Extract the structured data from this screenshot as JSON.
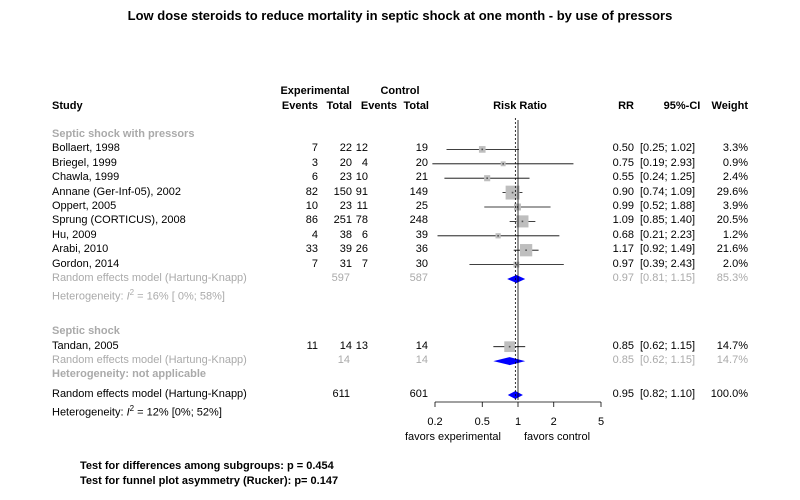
{
  "chart_data": {
    "type": "forest",
    "title": "Low dose steroids to reduce mortality in septic shock at one month - by use of pressors",
    "headers": {
      "experimental": "Experimental",
      "control": "Control",
      "study": "Study",
      "events_e": "Events",
      "total_e": "Total",
      "events_c": "Events",
      "total_c": "Total",
      "plot": "Risk Ratio",
      "rr": "RR",
      "ci": "95%-CI",
      "weight": "Weight"
    },
    "x_axis": {
      "scale": "log",
      "ticks": [
        0.2,
        0.5,
        1,
        2,
        5
      ],
      "tick_labels": [
        "0.2",
        "0.5",
        "1",
        "2",
        "5"
      ],
      "left_label": "favors experimental",
      "right_label": "favors control",
      "reference_line": 1,
      "overall_line": 0.95
    },
    "colors": {
      "diamond": "#0000ff",
      "square": "#bebebe",
      "subgroup_text": "#aaaaaa"
    },
    "subgroups": [
      {
        "name": "Septic shock with pressors",
        "studies": [
          {
            "study": "Bollaert, 1998",
            "ee": "7",
            "te": "22",
            "ec": "12",
            "tc": "19",
            "rr": 0.5,
            "lo": 0.25,
            "hi": 1.02,
            "rr_text": "0.50",
            "ci_text": "[0.25; 1.02]",
            "weight_text": "3.3%",
            "weight": 3.3
          },
          {
            "study": "Briegel, 1999",
            "ee": "3",
            "te": "20",
            "ec": "4",
            "tc": "20",
            "rr": 0.75,
            "lo": 0.19,
            "hi": 2.93,
            "rr_text": "0.75",
            "ci_text": "[0.19; 2.93]",
            "weight_text": "0.9%",
            "weight": 0.9
          },
          {
            "study": "Chawla, 1999",
            "ee": "6",
            "te": "23",
            "ec": "10",
            "tc": "21",
            "rr": 0.55,
            "lo": 0.24,
            "hi": 1.25,
            "rr_text": "0.55",
            "ci_text": "[0.24; 1.25]",
            "weight_text": "2.4%",
            "weight": 2.4
          },
          {
            "study": "Annane (Ger-Inf-05), 2002",
            "ee": "82",
            "te": "150",
            "ec": "91",
            "tc": "149",
            "rr": 0.9,
            "lo": 0.74,
            "hi": 1.09,
            "rr_text": "0.90",
            "ci_text": "[0.74; 1.09]",
            "weight_text": "29.6%",
            "weight": 29.6
          },
          {
            "study": "Oppert, 2005",
            "ee": "10",
            "te": "23",
            "ec": "11",
            "tc": "25",
            "rr": 0.99,
            "lo": 0.52,
            "hi": 1.88,
            "rr_text": "0.99",
            "ci_text": "[0.52; 1.88]",
            "weight_text": "3.9%",
            "weight": 3.9
          },
          {
            "study": "Sprung (CORTICUS), 2008",
            "ee": "86",
            "te": "251",
            "ec": "78",
            "tc": "248",
            "rr": 1.09,
            "lo": 0.85,
            "hi": 1.4,
            "rr_text": "1.09",
            "ci_text": "[0.85; 1.40]",
            "weight_text": "20.5%",
            "weight": 20.5
          },
          {
            "study": "Hu, 2009",
            "ee": "4",
            "te": "38",
            "ec": "6",
            "tc": "39",
            "rr": 0.68,
            "lo": 0.21,
            "hi": 2.23,
            "rr_text": "0.68",
            "ci_text": "[0.21; 2.23]",
            "weight_text": "1.2%",
            "weight": 1.2
          },
          {
            "study": "Arabi, 2010",
            "ee": "33",
            "te": "39",
            "ec": "26",
            "tc": "36",
            "rr": 1.17,
            "lo": 0.92,
            "hi": 1.49,
            "rr_text": "1.17",
            "ci_text": "[0.92; 1.49]",
            "weight_text": "21.6%",
            "weight": 21.6
          },
          {
            "study": "Gordon, 2014",
            "ee": "7",
            "te": "31",
            "ec": "7",
            "tc": "30",
            "rr": 0.97,
            "lo": 0.39,
            "hi": 2.43,
            "rr_text": "0.97",
            "ci_text": "[0.39; 2.43]",
            "weight_text": "2.0%",
            "weight": 2.0
          }
        ],
        "model": {
          "label": "Random effects model  (Hartung-Knapp)",
          "te": "597",
          "tc": "587",
          "rr": 0.97,
          "lo": 0.81,
          "hi": 1.15,
          "rr_text": "0.97",
          "ci_text": "[0.81; 1.15]",
          "weight_text": "85.3%"
        },
        "het": {
          "prefix": "Heterogeneity: ",
          "i": "I",
          "sup": "2",
          "rest": " = 16% [ 0%; 58%]"
        }
      },
      {
        "name": "Septic shock",
        "studies": [
          {
            "study": "Tandan, 2005",
            "ee": "11",
            "te": "14",
            "ec": "13",
            "tc": "14",
            "rr": 0.85,
            "lo": 0.62,
            "hi": 1.15,
            "rr_text": "0.85",
            "ci_text": "[0.62; 1.15]",
            "weight_text": "14.7%",
            "weight": 14.7
          }
        ],
        "model": {
          "label": "Random effects model  (Hartung-Knapp)",
          "te": "14",
          "tc": "14",
          "rr": 0.85,
          "lo": 0.62,
          "hi": 1.15,
          "rr_text": "0.85",
          "ci_text": "[0.62; 1.15]",
          "weight_text": "14.7%"
        },
        "het": {
          "text": "Heterogeneity: not applicable"
        }
      }
    ],
    "overall": {
      "label": "Random effects model  (Hartung-Knapp)",
      "te": "611",
      "tc": "601",
      "rr": 0.95,
      "lo": 0.82,
      "hi": 1.1,
      "rr_text": "0.95",
      "ci_text": "[0.82; 1.10]",
      "weight_text": "100.0%",
      "het": {
        "prefix": "Heterogeneity: ",
        "i": "I",
        "sup": "2",
        "rest": " = 12% [0%; 52%]"
      }
    },
    "footer": {
      "subgroup_test": "Test for differences among subgroups: p = 0.454",
      "funnel_test": "Test for funnel plot asymmetry (Rucker): p= 0.147"
    }
  }
}
